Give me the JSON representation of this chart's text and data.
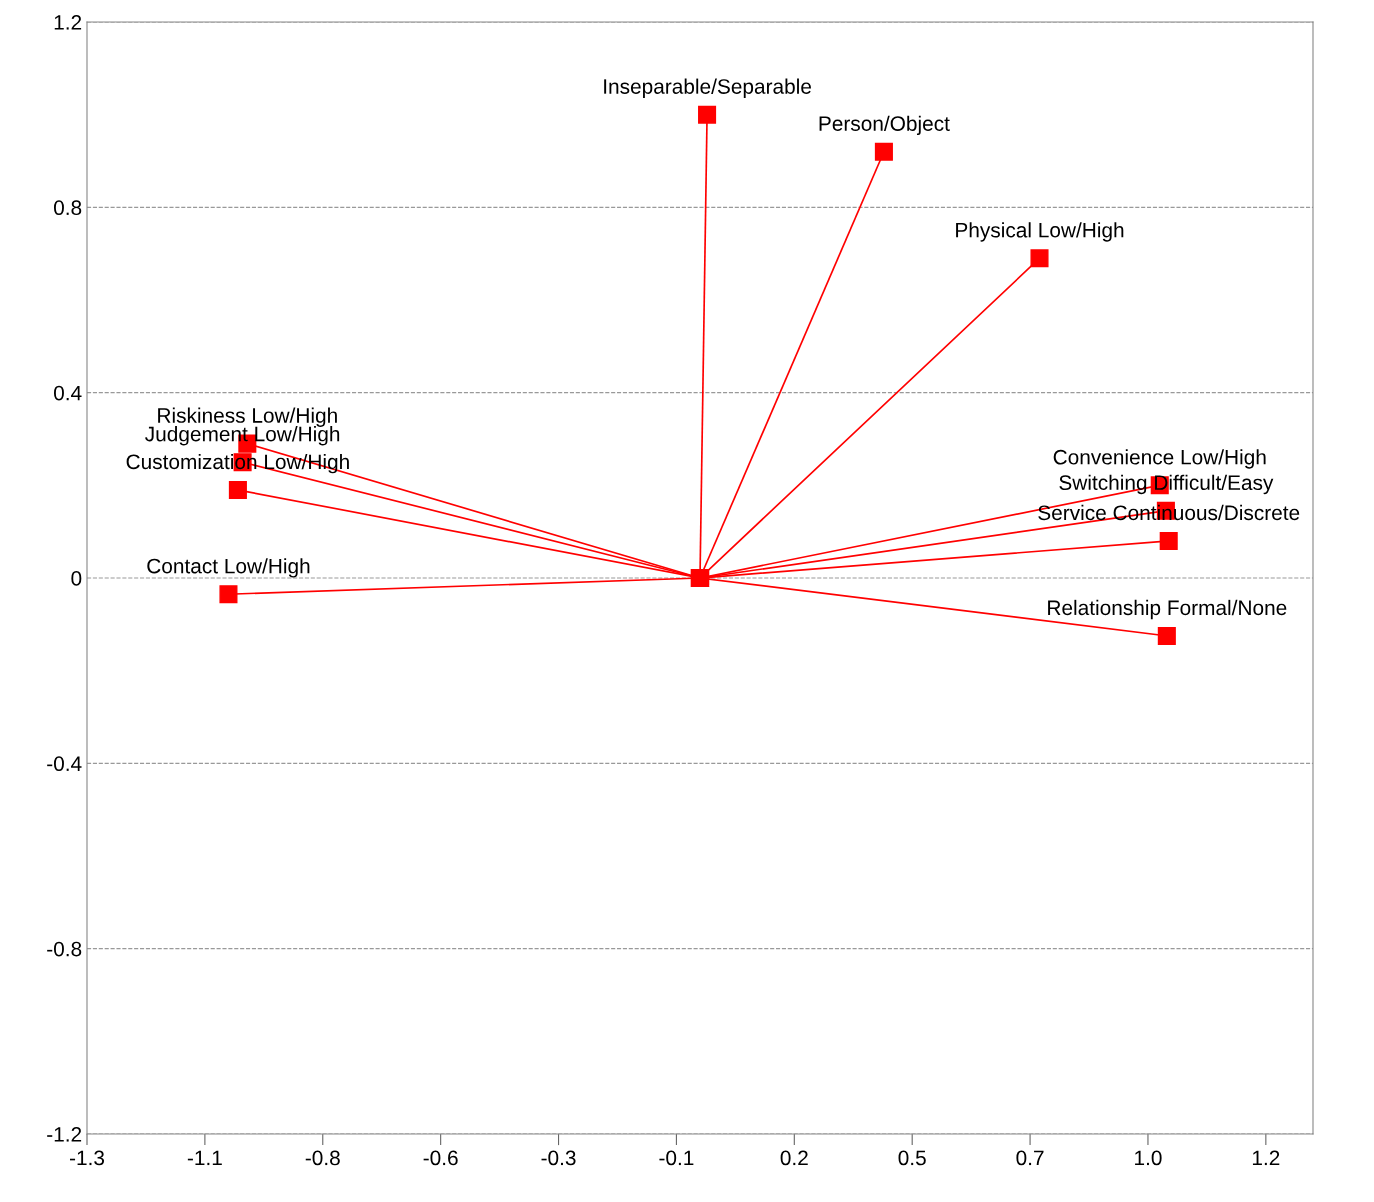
{
  "chart_data": {
    "type": "line",
    "marker": "square",
    "grid": "y",
    "xlim": [
      -1.3,
      1.3
    ],
    "ylim": [
      -1.2,
      1.2
    ],
    "xticks": [
      -1.3,
      {
        "value": -1.05,
        "label": "-1.1"
      },
      -0.8,
      {
        "value": -0.55,
        "label": "-0.6"
      },
      -0.3,
      {
        "value": -0.05,
        "label": "-0.1"
      },
      0.2,
      {
        "value": 0.45,
        "label": "0.5"
      },
      0.7,
      {
        "value": 0.95,
        "label": "1.0"
      },
      1.2
    ],
    "yticks": [
      1.2,
      0.8,
      0.4,
      0,
      -0.4,
      -0.8,
      -1.2
    ],
    "series": [
      {
        "color": "#ff0000",
        "x": [
          0,
          0.015
        ],
        "values": [
          0,
          1.0
        ]
      },
      {
        "color": "#ff0000",
        "x": [
          0,
          0.39
        ],
        "values": [
          0,
          0.92
        ]
      },
      {
        "color": "#ff0000",
        "x": [
          0,
          0.72
        ],
        "values": [
          0,
          0.69
        ]
      },
      {
        "color": "#ff0000",
        "x": [
          0,
          -0.96
        ],
        "values": [
          0,
          0.29
        ]
      },
      {
        "color": "#ff0000",
        "x": [
          0,
          -0.97
        ],
        "values": [
          0,
          0.25
        ]
      },
      {
        "color": "#ff0000",
        "x": [
          0,
          -0.98
        ],
        "values": [
          0,
          0.19
        ]
      },
      {
        "color": "#ff0000",
        "x": [
          0,
          -1.0
        ],
        "values": [
          0,
          -0.035
        ]
      },
      {
        "color": "#ff0000",
        "x": [
          0,
          0.975
        ],
        "values": [
          0,
          0.2
        ]
      },
      {
        "color": "#ff0000",
        "x": [
          0,
          0.988
        ],
        "values": [
          0,
          0.145
        ]
      },
      {
        "color": "#ff0000",
        "x": [
          0,
          0.994
        ],
        "values": [
          0,
          0.08
        ]
      },
      {
        "color": "#ff0000",
        "x": [
          0,
          0.99
        ],
        "values": [
          0,
          -0.125
        ]
      }
    ],
    "annotations": [
      {
        "text": "Inseparable/Separable",
        "x": 0.015,
        "y": 1.0
      },
      {
        "text": "Person/Object",
        "x": 0.39,
        "y": 0.92
      },
      {
        "text": "Physical Low/High",
        "x": 0.72,
        "y": 0.69
      },
      {
        "text": "Riskiness Low/High",
        "x": -0.96,
        "y": 0.29
      },
      {
        "text": "Judgement Low/High",
        "x": -0.97,
        "y": 0.25
      },
      {
        "text": "Customization Low/High",
        "x": -0.98,
        "y": 0.19
      },
      {
        "text": "Contact Low/High",
        "x": -1.0,
        "y": -0.035
      },
      {
        "text": "Convenience Low/High",
        "x": 0.975,
        "y": 0.2
      },
      {
        "text": "Switching Difficult/Easy",
        "x": 0.988,
        "y": 0.145
      },
      {
        "text": "Service Continuous/Discrete",
        "x": 0.994,
        "y": 0.08
      },
      {
        "text": "Relationship Formal/None",
        "x": 0.99,
        "y": -0.125
      }
    ]
  }
}
